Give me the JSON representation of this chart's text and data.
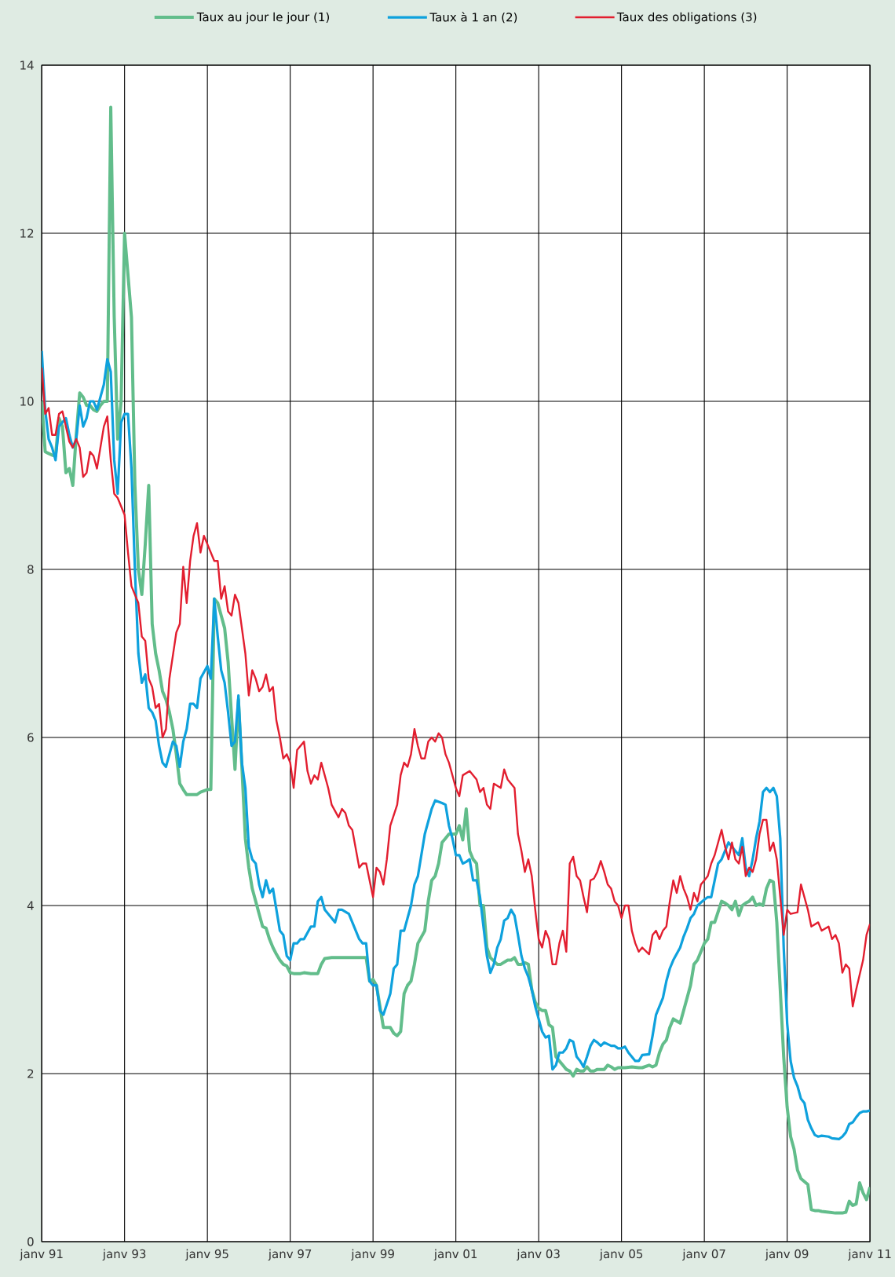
{
  "chart_data": {
    "type": "line",
    "legend": "top",
    "grid": true,
    "xlim": [
      "1991-01",
      "2011-01"
    ],
    "ylim": [
      0,
      14
    ],
    "xticks": [
      {
        "value": "1991-01",
        "label": "janv 91"
      },
      {
        "value": "1993-01",
        "label": "janv 93"
      },
      {
        "value": "1995-01",
        "label": "janv 95"
      },
      {
        "value": "1997-01",
        "label": "janv 97"
      },
      {
        "value": "1999-01",
        "label": "janv 99"
      },
      {
        "value": "2001-01",
        "label": "janv 01"
      },
      {
        "value": "2003-01",
        "label": "janv 03"
      },
      {
        "value": "2005-01",
        "label": "janv 05"
      },
      {
        "value": "2007-01",
        "label": "janv 07"
      },
      {
        "value": "2009-01",
        "label": "janv 09"
      },
      {
        "value": "2011-01",
        "label": "janv 11"
      }
    ],
    "yticks": [
      0,
      2,
      4,
      6,
      8,
      10,
      12,
      14
    ],
    "series": [
      {
        "name": "Taux au jour le jour (1)",
        "color": "#62bd8b",
        "x": [
          "1991-01",
          "1991-02",
          "1991-03",
          "1991-04",
          "1991-05",
          "1991-06",
          "1991-07",
          "1991-08",
          "1991-09",
          "1991-10",
          "1991-11",
          "1991-12",
          "1992-01",
          "1992-02",
          "1992-03",
          "1992-04",
          "1992-05",
          "1992-06",
          "1992-07",
          "1992-08",
          "1992-09",
          "1992-10",
          "1992-11",
          "1992-12",
          "1993-01",
          "1993-02",
          "1993-03",
          "1993-04",
          "1993-05",
          "1993-06",
          "1993-07",
          "1993-08",
          "1993-09",
          "1993-10",
          "1993-11",
          "1993-12",
          "1994-01",
          "1994-02",
          "1994-03",
          "1994-04",
          "1994-05",
          "1994-06",
          "1994-07",
          "1994-08",
          "1994-10",
          "1994-11",
          "1995-01",
          "1995-02",
          "1995-03",
          "1995-04",
          "1995-05",
          "1995-06",
          "1995-07",
          "1995-08",
          "1995-09",
          "1995-10",
          "1995-11",
          "1995-12",
          "1996-01",
          "1996-02",
          "1996-03",
          "1996-04",
          "1996-05",
          "1996-06",
          "1996-07",
          "1996-08",
          "1996-09",
          "1996-10",
          "1996-11",
          "1996-12",
          "1997-01",
          "1997-02",
          "1997-04",
          "1997-05",
          "1997-07",
          "1997-09",
          "1997-10",
          "1997-11",
          "1998-01",
          "1998-05",
          "1998-08",
          "1998-11",
          "1998-12",
          "1999-01",
          "1999-02",
          "1999-03",
          "1999-04",
          "1999-06",
          "1999-07",
          "1999-08",
          "1999-09",
          "1999-10",
          "1999-11",
          "1999-12",
          "2000-01",
          "2000-02",
          "2000-04",
          "2000-05",
          "2000-06",
          "2000-07",
          "2000-08",
          "2000-09",
          "2000-10",
          "2000-11",
          "2001-01",
          "2001-02",
          "2001-03",
          "2001-04",
          "2001-05",
          "2001-06",
          "2001-07",
          "2001-08",
          "2001-09",
          "2001-10",
          "2001-11",
          "2002-01",
          "2002-02",
          "2002-04",
          "2002-05",
          "2002-06",
          "2002-07",
          "2002-08",
          "2002-09",
          "2002-10",
          "2002-11",
          "2002-12",
          "2003-01",
          "2003-02",
          "2003-03",
          "2003-04",
          "2003-05",
          "2003-06",
          "2003-07",
          "2003-08",
          "2003-09",
          "2003-10",
          "2003-11",
          "2003-12",
          "2004-01",
          "2004-02",
          "2004-03",
          "2004-04",
          "2004-05",
          "2004-06",
          "2004-08",
          "2004-09",
          "2004-10",
          "2004-11",
          "2004-12",
          "2005-02",
          "2005-04",
          "2005-06",
          "2005-07",
          "2005-09",
          "2005-10",
          "2005-11",
          "2005-12",
          "2006-01",
          "2006-02",
          "2006-03",
          "2006-04",
          "2006-06",
          "2006-07",
          "2006-08",
          "2006-09",
          "2006-10",
          "2006-11",
          "2007-01",
          "2007-02",
          "2007-03",
          "2007-04",
          "2007-06",
          "2007-07",
          "2007-08",
          "2007-09",
          "2007-10",
          "2007-11",
          "2007-12",
          "2008-01",
          "2008-02",
          "2008-03",
          "2008-04",
          "2008-05",
          "2008-06",
          "2008-07",
          "2008-08",
          "2008-09",
          "2008-10",
          "2008-11",
          "2008-12",
          "2009-01",
          "2009-02",
          "2009-03",
          "2009-04",
          "2009-05",
          "2009-07",
          "2009-08",
          "2009-09",
          "2009-10",
          "2009-11",
          "2010-01",
          "2010-03",
          "2010-05",
          "2010-06",
          "2010-07",
          "2010-08",
          "2010-09",
          "2010-10",
          "2010-11",
          "2010-12",
          "2011-01"
        ],
        "values": [
          10.0,
          9.4,
          9.38,
          9.36,
          9.35,
          9.8,
          9.7,
          9.15,
          9.2,
          9.0,
          9.6,
          10.1,
          10.05,
          9.95,
          9.95,
          9.9,
          9.88,
          9.95,
          10.0,
          10.0,
          13.5,
          11.0,
          9.55,
          10.0,
          12.0,
          11.5,
          11.0,
          9.0,
          8.0,
          7.7,
          8.3,
          9.0,
          7.35,
          7.0,
          6.8,
          6.55,
          6.45,
          6.3,
          6.1,
          5.8,
          5.45,
          5.38,
          5.32,
          5.32,
          5.32,
          5.35,
          5.38,
          5.38,
          7.65,
          7.6,
          7.45,
          7.3,
          6.9,
          6.25,
          5.62,
          6.45,
          5.65,
          4.8,
          4.45,
          4.2,
          4.05,
          3.9,
          3.75,
          3.73,
          3.6,
          3.5,
          3.42,
          3.35,
          3.3,
          3.28,
          3.2,
          3.19,
          3.19,
          3.2,
          3.19,
          3.19,
          3.3,
          3.37,
          3.38,
          3.38,
          3.38,
          3.38,
          3.1,
          3.12,
          3.05,
          2.8,
          2.55,
          2.55,
          2.48,
          2.45,
          2.5,
          2.95,
          3.05,
          3.1,
          3.3,
          3.55,
          3.7,
          4.05,
          4.3,
          4.35,
          4.5,
          4.75,
          4.8,
          4.85,
          4.85,
          4.95,
          4.78,
          5.15,
          4.65,
          4.55,
          4.5,
          4.0,
          4.0,
          3.5,
          3.38,
          3.3,
          3.3,
          3.35,
          3.35,
          3.38,
          3.3,
          3.3,
          3.32,
          3.3,
          3.0,
          2.85,
          2.78,
          2.75,
          2.75,
          2.58,
          2.55,
          2.2,
          2.15,
          2.1,
          2.05,
          2.03,
          1.97,
          2.05,
          2.03,
          2.03,
          2.08,
          2.03,
          2.03,
          2.05,
          2.05,
          2.1,
          2.08,
          2.05,
          2.07,
          2.07,
          2.08,
          2.07,
          2.07,
          2.1,
          2.08,
          2.1,
          2.25,
          2.35,
          2.4,
          2.55,
          2.65,
          2.6,
          2.75,
          2.9,
          3.05,
          3.3,
          3.35,
          3.55,
          3.6,
          3.8,
          3.8,
          4.05,
          4.03,
          4.0,
          3.95,
          4.05,
          3.88,
          4.0,
          4.03,
          4.05,
          4.1,
          4.0,
          4.02,
          4.0,
          4.2,
          4.3,
          4.28,
          3.8,
          3.0,
          2.2,
          1.6,
          1.25,
          1.1,
          0.85,
          0.75,
          0.68,
          0.38,
          0.37,
          0.37,
          0.36,
          0.35,
          0.34,
          0.34,
          0.35,
          0.48,
          0.43,
          0.45,
          0.7,
          0.58,
          0.5,
          0.65
        ]
      },
      {
        "name": "Taux à 1 an (2)",
        "color": "#0ea1dd",
        "x": [
          "1991-01",
          "1991-02",
          "1991-03",
          "1991-04",
          "1991-05",
          "1991-06",
          "1991-07",
          "1991-08",
          "1991-09",
          "1991-10",
          "1991-11",
          "1991-12",
          "1992-01",
          "1992-02",
          "1992-03",
          "1992-04",
          "1992-05",
          "1992-06",
          "1992-07",
          "1992-08",
          "1992-09",
          "1992-10",
          "1992-11",
          "1992-12",
          "1993-01",
          "1993-02",
          "1993-03",
          "1993-04",
          "1993-05",
          "1993-06",
          "1993-07",
          "1993-08",
          "1993-09",
          "1993-10",
          "1993-11",
          "1993-12",
          "1994-01",
          "1994-02",
          "1994-03",
          "1994-04",
          "1994-05",
          "1994-06",
          "1994-07",
          "1994-08",
          "1994-09",
          "1994-10",
          "1994-11",
          "1995-01",
          "1995-02",
          "1995-03",
          "1995-04",
          "1995-05",
          "1995-06",
          "1995-07",
          "1995-08",
          "1995-09",
          "1995-10",
          "1995-11",
          "1995-12",
          "1996-01",
          "1996-02",
          "1996-03",
          "1996-04",
          "1996-05",
          "1996-06",
          "1996-07",
          "1996-08",
          "1996-09",
          "1996-10",
          "1996-11",
          "1996-12",
          "1997-01",
          "1997-02",
          "1997-03",
          "1997-04",
          "1997-05",
          "1997-07",
          "1997-08",
          "1997-09",
          "1997-10",
          "1997-11",
          "1998-01",
          "1998-02",
          "1998-03",
          "1998-04",
          "1998-06",
          "1998-07",
          "1998-09",
          "1998-10",
          "1998-11",
          "1998-12",
          "1999-01",
          "1999-02",
          "1999-03",
          "1999-04",
          "1999-06",
          "1999-07",
          "1999-08",
          "1999-09",
          "1999-10",
          "1999-11",
          "1999-12",
          "2000-01",
          "2000-02",
          "2000-04",
          "2000-05",
          "2000-06",
          "2000-07",
          "2000-09",
          "2000-10",
          "2000-11",
          "2000-12",
          "2001-01",
          "2001-02",
          "2001-03",
          "2001-04",
          "2001-05",
          "2001-06",
          "2001-07",
          "2001-08",
          "2001-09",
          "2001-10",
          "2001-11",
          "2001-12",
          "2002-01",
          "2002-02",
          "2002-03",
          "2002-04",
          "2002-05",
          "2002-06",
          "2002-07",
          "2002-08",
          "2002-09",
          "2002-10",
          "2002-11",
          "2002-12",
          "2003-01",
          "2003-02",
          "2003-03",
          "2003-04",
          "2003-05",
          "2003-06",
          "2003-07",
          "2003-08",
          "2003-09",
          "2003-10",
          "2003-11",
          "2003-12",
          "2004-01",
          "2004-02",
          "2004-03",
          "2004-04",
          "2004-05",
          "2004-06",
          "2004-07",
          "2004-08",
          "2004-10",
          "2004-11",
          "2004-12",
          "2005-01",
          "2005-02",
          "2005-03",
          "2005-05",
          "2005-06",
          "2005-07",
          "2005-09",
          "2005-10",
          "2005-11",
          "2005-12",
          "2006-01",
          "2006-02",
          "2006-03",
          "2006-04",
          "2006-06",
          "2006-07",
          "2006-08",
          "2006-09",
          "2006-10",
          "2006-11",
          "2007-01",
          "2007-02",
          "2007-03",
          "2007-04",
          "2007-05",
          "2007-06",
          "2007-07",
          "2007-08",
          "2007-09",
          "2007-10",
          "2007-11",
          "2007-12",
          "2008-01",
          "2008-02",
          "2008-03",
          "2008-04",
          "2008-05",
          "2008-06",
          "2008-07",
          "2008-08",
          "2008-09",
          "2008-10",
          "2008-11",
          "2008-12",
          "2009-01",
          "2009-02",
          "2009-03",
          "2009-04",
          "2009-05",
          "2009-06",
          "2009-07",
          "2009-08",
          "2009-09",
          "2009-10",
          "2009-11",
          "2010-01",
          "2010-02",
          "2010-04",
          "2010-05",
          "2010-06",
          "2010-07",
          "2010-08",
          "2010-09",
          "2010-10",
          "2010-11",
          "2010-12",
          "2011-01"
        ],
        "values": [
          10.6,
          9.9,
          9.55,
          9.45,
          9.3,
          9.7,
          9.75,
          9.8,
          9.6,
          9.45,
          9.55,
          9.95,
          9.7,
          9.8,
          10.0,
          10.0,
          9.9,
          10.05,
          10.2,
          10.5,
          10.35,
          9.3,
          8.9,
          9.75,
          9.85,
          9.85,
          9.2,
          8.0,
          7.0,
          6.65,
          6.75,
          6.35,
          6.3,
          6.2,
          5.9,
          5.7,
          5.65,
          5.8,
          5.95,
          5.9,
          5.65,
          5.95,
          6.1,
          6.4,
          6.4,
          6.35,
          6.7,
          6.85,
          6.7,
          7.65,
          7.2,
          6.8,
          6.65,
          6.3,
          5.9,
          5.95,
          6.5,
          5.7,
          5.4,
          4.7,
          4.55,
          4.5,
          4.25,
          4.1,
          4.3,
          4.15,
          4.2,
          3.95,
          3.7,
          3.65,
          3.4,
          3.35,
          3.55,
          3.55,
          3.6,
          3.6,
          3.75,
          3.75,
          4.05,
          4.1,
          3.95,
          3.85,
          3.8,
          3.95,
          3.95,
          3.9,
          3.8,
          3.6,
          3.55,
          3.55,
          3.1,
          3.05,
          3.05,
          2.75,
          2.7,
          2.95,
          3.25,
          3.3,
          3.7,
          3.7,
          3.85,
          4.0,
          4.25,
          4.35,
          4.85,
          5.0,
          5.15,
          5.25,
          5.22,
          5.2,
          4.95,
          4.8,
          4.6,
          4.6,
          4.5,
          4.52,
          4.55,
          4.3,
          4.3,
          4.1,
          3.75,
          3.4,
          3.2,
          3.3,
          3.5,
          3.6,
          3.82,
          3.85,
          3.95,
          3.88,
          3.65,
          3.4,
          3.25,
          3.15,
          3.0,
          2.8,
          2.65,
          2.5,
          2.43,
          2.45,
          2.05,
          2.1,
          2.25,
          2.25,
          2.3,
          2.4,
          2.38,
          2.2,
          2.15,
          2.08,
          2.2,
          2.33,
          2.4,
          2.37,
          2.33,
          2.37,
          2.33,
          2.33,
          2.3,
          2.3,
          2.32,
          2.25,
          2.15,
          2.15,
          2.22,
          2.23,
          2.45,
          2.7,
          2.8,
          2.9,
          3.1,
          3.25,
          3.35,
          3.5,
          3.63,
          3.73,
          3.85,
          3.9,
          4.0,
          4.07,
          4.1,
          4.1,
          4.3,
          4.5,
          4.55,
          4.65,
          4.75,
          4.7,
          4.65,
          4.6,
          4.8,
          4.45,
          4.35,
          4.55,
          4.8,
          5.0,
          5.35,
          5.4,
          5.35,
          5.4,
          5.3,
          4.8,
          3.5,
          2.6,
          2.15,
          1.95,
          1.85,
          1.7,
          1.65,
          1.45,
          1.35,
          1.27,
          1.25,
          1.26,
          1.25,
          1.23,
          1.22,
          1.25,
          1.3,
          1.4,
          1.42,
          1.48,
          1.53,
          1.55,
          1.55,
          1.56
        ]
      },
      {
        "name": "Taux des obligations (3)",
        "color": "#e21e2f",
        "x": [
          "1991-01",
          "1991-02",
          "1991-03",
          "1991-04",
          "1991-05",
          "1991-06",
          "1991-07",
          "1991-08",
          "1991-09",
          "1991-10",
          "1991-11",
          "1991-12",
          "1992-01",
          "1992-02",
          "1992-03",
          "1992-04",
          "1992-05",
          "1992-06",
          "1992-07",
          "1992-08",
          "1992-09",
          "1992-10",
          "1992-11",
          "1992-12",
          "1993-01",
          "1993-02",
          "1993-03",
          "1993-05",
          "1993-06",
          "1993-07",
          "1993-08",
          "1993-09",
          "1993-10",
          "1993-11",
          "1993-12",
          "1994-01",
          "1994-02",
          "1994-04",
          "1994-05",
          "1994-06",
          "1994-07",
          "1994-08",
          "1994-09",
          "1994-10",
          "1994-11",
          "1994-12",
          "1995-01",
          "1995-03",
          "1995-04",
          "1995-05",
          "1995-06",
          "1995-07",
          "1995-08",
          "1995-09",
          "1995-10",
          "1995-12",
          "1996-01",
          "1996-02",
          "1996-03",
          "1996-04",
          "1996-05",
          "1996-06",
          "1996-07",
          "1996-08",
          "1996-09",
          "1996-10",
          "1996-11",
          "1996-12",
          "1997-01",
          "1997-02",
          "1997-03",
          "1997-05",
          "1997-06",
          "1997-07",
          "1997-08",
          "1997-09",
          "1997-10",
          "1997-12",
          "1998-01",
          "1998-03",
          "1998-04",
          "1998-05",
          "1998-06",
          "1998-07",
          "1998-09",
          "1998-10",
          "1998-11",
          "1999-01",
          "1999-02",
          "1999-03",
          "1999-04",
          "1999-05",
          "1999-06",
          "1999-08",
          "1999-09",
          "1999-10",
          "1999-11",
          "1999-12",
          "2000-01",
          "2000-02",
          "2000-03",
          "2000-04",
          "2000-05",
          "2000-06",
          "2000-07",
          "2000-08",
          "2000-09",
          "2000-10",
          "2000-11",
          "2001-01",
          "2001-02",
          "2001-03",
          "2001-05",
          "2001-07",
          "2001-08",
          "2001-09",
          "2001-10",
          "2001-11",
          "2001-12",
          "2002-02",
          "2002-03",
          "2002-04",
          "2002-06",
          "2002-07",
          "2002-08",
          "2002-09",
          "2002-10",
          "2002-11",
          "2002-12",
          "2003-01",
          "2003-02",
          "2003-03",
          "2003-04",
          "2003-05",
          "2003-06",
          "2003-07",
          "2003-08",
          "2003-09",
          "2003-10",
          "2003-11",
          "2003-12",
          "2004-01",
          "2004-02",
          "2004-03",
          "2004-04",
          "2004-05",
          "2004-06",
          "2004-07",
          "2004-08",
          "2004-09",
          "2004-10",
          "2004-11",
          "2004-12",
          "2005-01",
          "2005-02",
          "2005-03",
          "2005-04",
          "2005-05",
          "2005-06",
          "2005-07",
          "2005-09",
          "2005-10",
          "2005-11",
          "2005-12",
          "2006-01",
          "2006-02",
          "2006-03",
          "2006-04",
          "2006-05",
          "2006-06",
          "2006-07",
          "2006-08",
          "2006-09",
          "2006-10",
          "2006-11",
          "2006-12",
          "2007-01",
          "2007-02",
          "2007-03",
          "2007-04",
          "2007-06",
          "2007-07",
          "2007-08",
          "2007-09",
          "2007-10",
          "2007-11",
          "2007-12",
          "2008-01",
          "2008-02",
          "2008-03",
          "2008-04",
          "2008-05",
          "2008-06",
          "2008-07",
          "2008-08",
          "2008-09",
          "2008-10",
          "2008-12",
          "2009-01",
          "2009-02",
          "2009-04",
          "2009-05",
          "2009-07",
          "2009-08",
          "2009-10",
          "2009-11",
          "2010-01",
          "2010-02",
          "2010-03",
          "2010-04",
          "2010-05",
          "2010-06",
          "2010-07",
          "2010-08",
          "2010-09",
          "2010-11",
          "2010-12",
          "2011-01"
        ],
        "values": [
          10.4,
          9.85,
          9.92,
          9.6,
          9.6,
          9.85,
          9.88,
          9.7,
          9.52,
          9.45,
          9.55,
          9.45,
          9.1,
          9.15,
          9.4,
          9.35,
          9.2,
          9.45,
          9.7,
          9.82,
          9.3,
          8.9,
          8.85,
          8.75,
          8.65,
          8.2,
          7.8,
          7.6,
          7.2,
          7.15,
          6.7,
          6.6,
          6.35,
          6.4,
          6.0,
          6.1,
          6.7,
          7.25,
          7.35,
          8.03,
          7.6,
          8.1,
          8.4,
          8.55,
          8.2,
          8.4,
          8.3,
          8.1,
          8.1,
          7.65,
          7.8,
          7.5,
          7.45,
          7.7,
          7.6,
          7.0,
          6.5,
          6.8,
          6.7,
          6.55,
          6.6,
          6.75,
          6.55,
          6.6,
          6.2,
          6.0,
          5.75,
          5.8,
          5.7,
          5.4,
          5.85,
          5.95,
          5.6,
          5.45,
          5.55,
          5.5,
          5.7,
          5.4,
          5.2,
          5.05,
          5.15,
          5.1,
          4.95,
          4.9,
          4.45,
          4.5,
          4.5,
          4.1,
          4.45,
          4.4,
          4.25,
          4.55,
          4.95,
          5.2,
          5.55,
          5.7,
          5.65,
          5.8,
          6.1,
          5.9,
          5.75,
          5.75,
          5.95,
          6.0,
          5.95,
          6.05,
          6.0,
          5.8,
          5.7,
          5.4,
          5.3,
          5.55,
          5.6,
          5.5,
          5.35,
          5.4,
          5.2,
          5.15,
          5.45,
          5.4,
          5.62,
          5.5,
          5.4,
          4.85,
          4.65,
          4.4,
          4.55,
          4.35,
          3.95,
          3.6,
          3.5,
          3.7,
          3.6,
          3.3,
          3.3,
          3.55,
          3.7,
          3.45,
          4.5,
          4.58,
          4.35,
          4.3,
          4.1,
          3.92,
          4.3,
          4.32,
          4.4,
          4.53,
          4.4,
          4.25,
          4.2,
          4.05,
          4.0,
          3.85,
          4.0,
          4.0,
          3.7,
          3.55,
          3.45,
          3.5,
          3.42,
          3.65,
          3.7,
          3.6,
          3.7,
          3.75,
          4.05,
          4.3,
          4.15,
          4.35,
          4.2,
          4.1,
          3.95,
          4.15,
          4.05,
          4.25,
          4.3,
          4.35,
          4.5,
          4.6,
          4.9,
          4.7,
          4.55,
          4.75,
          4.55,
          4.5,
          4.7,
          4.35,
          4.45,
          4.4,
          4.55,
          4.85,
          5.02,
          5.02,
          4.65,
          4.75,
          4.55,
          3.65,
          3.95,
          3.9,
          3.92,
          4.25,
          3.95,
          3.75,
          3.8,
          3.7,
          3.75,
          3.6,
          3.65,
          3.55,
          3.2,
          3.3,
          3.25,
          2.8,
          3.0,
          3.35,
          3.65,
          3.78
        ]
      }
    ]
  }
}
